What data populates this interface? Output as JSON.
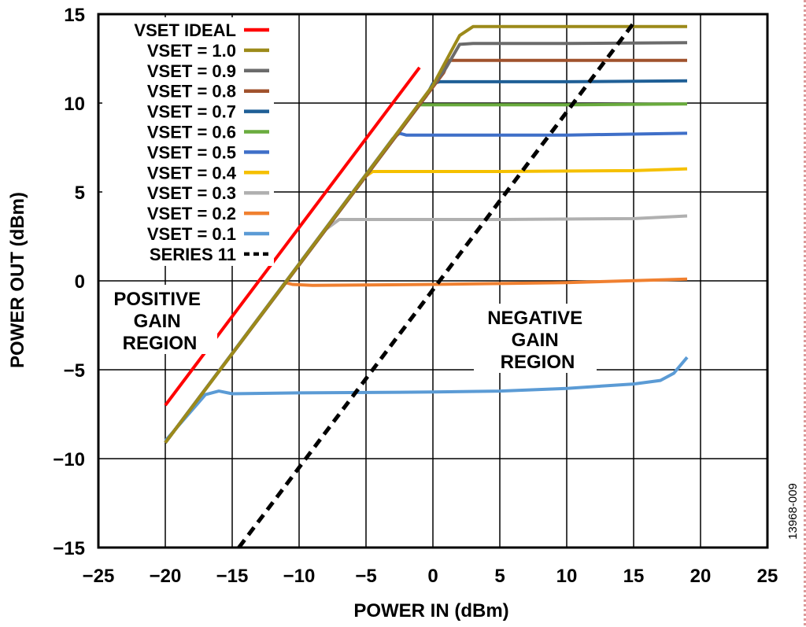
{
  "chart_data": {
    "type": "line",
    "title": "",
    "xlabel": "POWER IN (dBm)",
    "ylabel": "POWER OUT (dBm)",
    "xlim": [
      -25,
      25
    ],
    "ylim": [
      -15,
      15
    ],
    "xticks": [
      -25,
      -20,
      -15,
      -10,
      -5,
      0,
      5,
      10,
      15,
      20,
      25
    ],
    "yticks": [
      -15,
      -10,
      -5,
      0,
      5,
      10,
      15
    ],
    "xtick_labels": [
      "−25",
      "−20",
      "−15",
      "−10",
      "−5",
      "0",
      "5",
      "10",
      "15",
      "20",
      "25"
    ],
    "ytick_labels": [
      "−15",
      "−10",
      "−5",
      "0",
      "5",
      "10",
      "15"
    ],
    "grid": true,
    "legend_position": "top-left",
    "annotations": [
      {
        "id": "positive",
        "lines": [
          "POSITIVE",
          "GAIN",
          "REGION"
        ]
      },
      {
        "id": "negative",
        "lines": [
          "NEGATIVE",
          "GAIN",
          "REGION"
        ]
      }
    ],
    "figure_id": "13968-009",
    "series": [
      {
        "name": "VSET IDEAL",
        "color": "#ff0000",
        "dash": false,
        "width": 4,
        "points": [
          [
            -20,
            -7
          ],
          [
            -1,
            12
          ]
        ]
      },
      {
        "name": "VSET = 1.0",
        "color": "#9c8a1a",
        "dash": false,
        "width": 4,
        "points": [
          [
            -20,
            -9.1
          ],
          [
            -17,
            -6.1
          ],
          [
            0,
            11
          ],
          [
            2,
            13.8
          ],
          [
            3,
            14.3
          ],
          [
            10,
            14.3
          ],
          [
            19,
            14.3
          ]
        ]
      },
      {
        "name": "VSET = 0.9",
        "color": "#6b6b6b",
        "dash": false,
        "width": 4,
        "points": [
          [
            -20,
            -9.1
          ],
          [
            1,
            12
          ],
          [
            2,
            13.3
          ],
          [
            3,
            13.35
          ],
          [
            10,
            13.35
          ],
          [
            19,
            13.4
          ]
        ]
      },
      {
        "name": "VSET = 0.8",
        "color": "#a0522d",
        "dash": false,
        "width": 4,
        "points": [
          [
            -20,
            -9.1
          ],
          [
            0.8,
            11.7
          ],
          [
            1.2,
            12.4
          ],
          [
            10,
            12.4
          ],
          [
            19,
            12.4
          ]
        ]
      },
      {
        "name": "VSET = 0.7",
        "color": "#1f5f96",
        "dash": false,
        "width": 4,
        "points": [
          [
            -20,
            -9.1
          ],
          [
            -0.5,
            10.4
          ],
          [
            0,
            11.1
          ],
          [
            0.5,
            11.2
          ],
          [
            10,
            11.2
          ],
          [
            19,
            11.25
          ]
        ]
      },
      {
        "name": "VSET = 0.6",
        "color": "#6aac3e",
        "dash": false,
        "width": 4,
        "points": [
          [
            -20,
            -9.1
          ],
          [
            -1.5,
            9.4
          ],
          [
            -1,
            9.9
          ],
          [
            10,
            9.9
          ],
          [
            19,
            9.95
          ]
        ]
      },
      {
        "name": "VSET = 0.5",
        "color": "#3f6fc8",
        "dash": false,
        "width": 4,
        "points": [
          [
            -20,
            -9.1
          ],
          [
            -3,
            8
          ],
          [
            -2.5,
            8.3
          ],
          [
            -2,
            8.2
          ],
          [
            10,
            8.2
          ],
          [
            19,
            8.3
          ]
        ]
      },
      {
        "name": "VSET = 0.4",
        "color": "#f5c000",
        "dash": false,
        "width": 4,
        "points": [
          [
            -20,
            -9.1
          ],
          [
            -5,
            5.9
          ],
          [
            -4.5,
            6.15
          ],
          [
            5,
            6.15
          ],
          [
            15,
            6.2
          ],
          [
            19,
            6.3
          ]
        ]
      },
      {
        "name": "VSET = 0.3",
        "color": "#b0b0b0",
        "dash": false,
        "width": 4,
        "points": [
          [
            -20,
            -9.1
          ],
          [
            -8,
            2.9
          ],
          [
            -7,
            3.45
          ],
          [
            5,
            3.45
          ],
          [
            15,
            3.5
          ],
          [
            19,
            3.65
          ]
        ]
      },
      {
        "name": "VSET = 0.2",
        "color": "#f08030",
        "dash": false,
        "width": 4,
        "points": [
          [
            -20,
            -9.1
          ],
          [
            -11,
            -0.1
          ],
          [
            -10.5,
            -0.2
          ],
          [
            -9,
            -0.25
          ],
          [
            0,
            -0.2
          ],
          [
            10,
            -0.1
          ],
          [
            19,
            0.1
          ]
        ]
      },
      {
        "name": "VSET = 0.1",
        "color": "#5b9bd5",
        "dash": false,
        "width": 4,
        "points": [
          [
            -20,
            -9
          ],
          [
            -17,
            -6.4
          ],
          [
            -16,
            -6.2
          ],
          [
            -15,
            -6.35
          ],
          [
            -10,
            -6.3
          ],
          [
            0,
            -6.25
          ],
          [
            5,
            -6.2
          ],
          [
            10,
            -6.05
          ],
          [
            15,
            -5.8
          ],
          [
            17,
            -5.6
          ],
          [
            18,
            -5.2
          ],
          [
            19,
            -4.3
          ]
        ]
      },
      {
        "name": "SERIES 11",
        "color": "#000000",
        "dash": true,
        "width": 5,
        "points": [
          [
            -14.5,
            -15
          ],
          [
            15,
            14.5
          ]
        ]
      }
    ]
  }
}
